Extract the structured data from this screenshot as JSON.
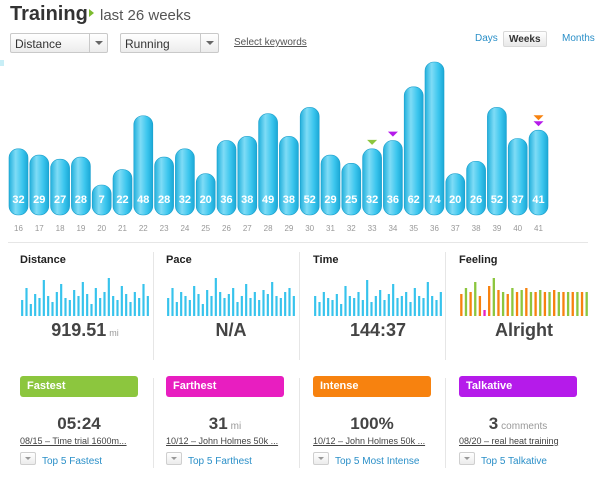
{
  "header": {
    "title": "Training",
    "subtitle": "last 26 weeks"
  },
  "controls": {
    "metric_select": "Distance",
    "sport_select": "Running",
    "keywords_link": "Select keywords",
    "ranges": [
      {
        "label": "Days",
        "active": false
      },
      {
        "label": "Weeks",
        "active": true
      },
      {
        "label": "Months",
        "active": false
      }
    ]
  },
  "colors": {
    "bar": "#37c3ec",
    "bar_light": "#8fe0f7",
    "green": "#8cc63e",
    "magenta": "#e81ec0",
    "orange": "#f7820f",
    "purple": "#b51bea",
    "link": "#2a8fc8"
  },
  "chart_data": {
    "type": "bar",
    "categories": [
      "16",
      "17",
      "18",
      "19",
      "20",
      "21",
      "22",
      "23",
      "24",
      "25",
      "26",
      "27",
      "28",
      "29",
      "30",
      "31",
      "32",
      "33",
      "34",
      "35",
      "36",
      "37",
      "38",
      "39",
      "40",
      "41"
    ],
    "values": [
      32,
      29,
      27,
      28,
      7,
      22,
      48,
      28,
      32,
      20,
      36,
      38,
      49,
      38,
      52,
      29,
      25,
      32,
      36,
      62,
      74,
      20,
      26,
      52,
      37,
      41
    ],
    "markers": [
      {
        "category": "33",
        "colors": [
          "green"
        ]
      },
      {
        "category": "34",
        "colors": [
          "purple"
        ]
      },
      {
        "category": "41",
        "colors": [
          "orange",
          "purple"
        ]
      }
    ]
  },
  "stats": [
    {
      "label": "Distance",
      "value": "919.51",
      "unit": "mi",
      "spark": [
        0.4,
        0.7,
        0.3,
        0.55,
        0.45,
        0.9,
        0.5,
        0.35,
        0.6,
        0.8,
        0.45,
        0.4,
        0.65,
        0.5,
        0.85,
        0.55,
        0.3,
        0.7,
        0.45,
        0.6,
        0.95,
        0.5,
        0.4,
        0.75,
        0.55,
        0.35,
        0.6,
        0.45,
        0.8,
        0.5
      ]
    },
    {
      "label": "Pace",
      "value": "N/A",
      "unit": "",
      "spark": [
        0.45,
        0.7,
        0.35,
        0.6,
        0.5,
        0.4,
        0.75,
        0.55,
        0.3,
        0.65,
        0.5,
        0.95,
        0.6,
        0.45,
        0.55,
        0.7,
        0.35,
        0.5,
        0.8,
        0.45,
        0.6,
        0.4,
        0.65,
        0.55,
        0.85,
        0.5,
        0.45,
        0.6,
        0.7,
        0.5
      ]
    },
    {
      "label": "Time",
      "value": "144:37",
      "unit": "",
      "spark": [
        0.5,
        0.35,
        0.6,
        0.45,
        0.4,
        0.55,
        0.3,
        0.75,
        0.5,
        0.45,
        0.6,
        0.4,
        0.9,
        0.35,
        0.5,
        0.65,
        0.4,
        0.55,
        0.8,
        0.45,
        0.5,
        0.6,
        0.35,
        0.7,
        0.5,
        0.45,
        0.85,
        0.5,
        0.4,
        0.6
      ]
    },
    {
      "label": "Feeling",
      "value": "Alright",
      "unit": "",
      "spark_colored": [
        [
          "#f7820f",
          0.55
        ],
        [
          "#8cc63e",
          0.7
        ],
        [
          "#f7820f",
          0.6
        ],
        [
          "#8cc63e",
          0.85
        ],
        [
          "#f7820f",
          0.5
        ],
        [
          "#e81ec0",
          0.15
        ],
        [
          "#f7820f",
          0.75
        ],
        [
          "#8cc63e",
          0.95
        ],
        [
          "#f7820f",
          0.65
        ],
        [
          "#8cc63e",
          0.6
        ],
        [
          "#f7820f",
          0.55
        ],
        [
          "#8cc63e",
          0.7
        ],
        [
          "#f7820f",
          0.6
        ],
        [
          "#8cc63e",
          0.65
        ],
        [
          "#f7820f",
          0.7
        ],
        [
          "#8cc63e",
          0.6
        ],
        [
          "#f7820f",
          0.6
        ],
        [
          "#8cc63e",
          0.65
        ],
        [
          "#f7820f",
          0.6
        ],
        [
          "#8cc63e",
          0.6
        ],
        [
          "#f7820f",
          0.65
        ],
        [
          "#8cc63e",
          0.6
        ],
        [
          "#f7820f",
          0.6
        ],
        [
          "#8cc63e",
          0.6
        ],
        [
          "#f7820f",
          0.6
        ],
        [
          "#8cc63e",
          0.6
        ],
        [
          "#f7820f",
          0.6
        ],
        [
          "#8cc63e",
          0.6
        ]
      ]
    }
  ],
  "records": [
    {
      "badge": "Fastest",
      "color": "#8cc63e",
      "value": "05:24",
      "unit": "",
      "link": "08/15 – Time trial 1600m...",
      "top": "Top 5 Fastest"
    },
    {
      "badge": "Farthest",
      "color": "#e81ec0",
      "value": "31",
      "unit": "mi",
      "link": "10/12 – John Holmes 50k ...",
      "top": "Top 5 Farthest"
    },
    {
      "badge": "Intense",
      "color": "#f7820f",
      "value": "100%",
      "unit": "",
      "link": "10/12 – John Holmes 50k ...",
      "top": "Top 5 Most Intense"
    },
    {
      "badge": "Talkative",
      "color": "#b51bea",
      "value": "3",
      "unit": "comments",
      "link": "08/20 – real heat training",
      "top": "Top 5 Talkative"
    }
  ]
}
